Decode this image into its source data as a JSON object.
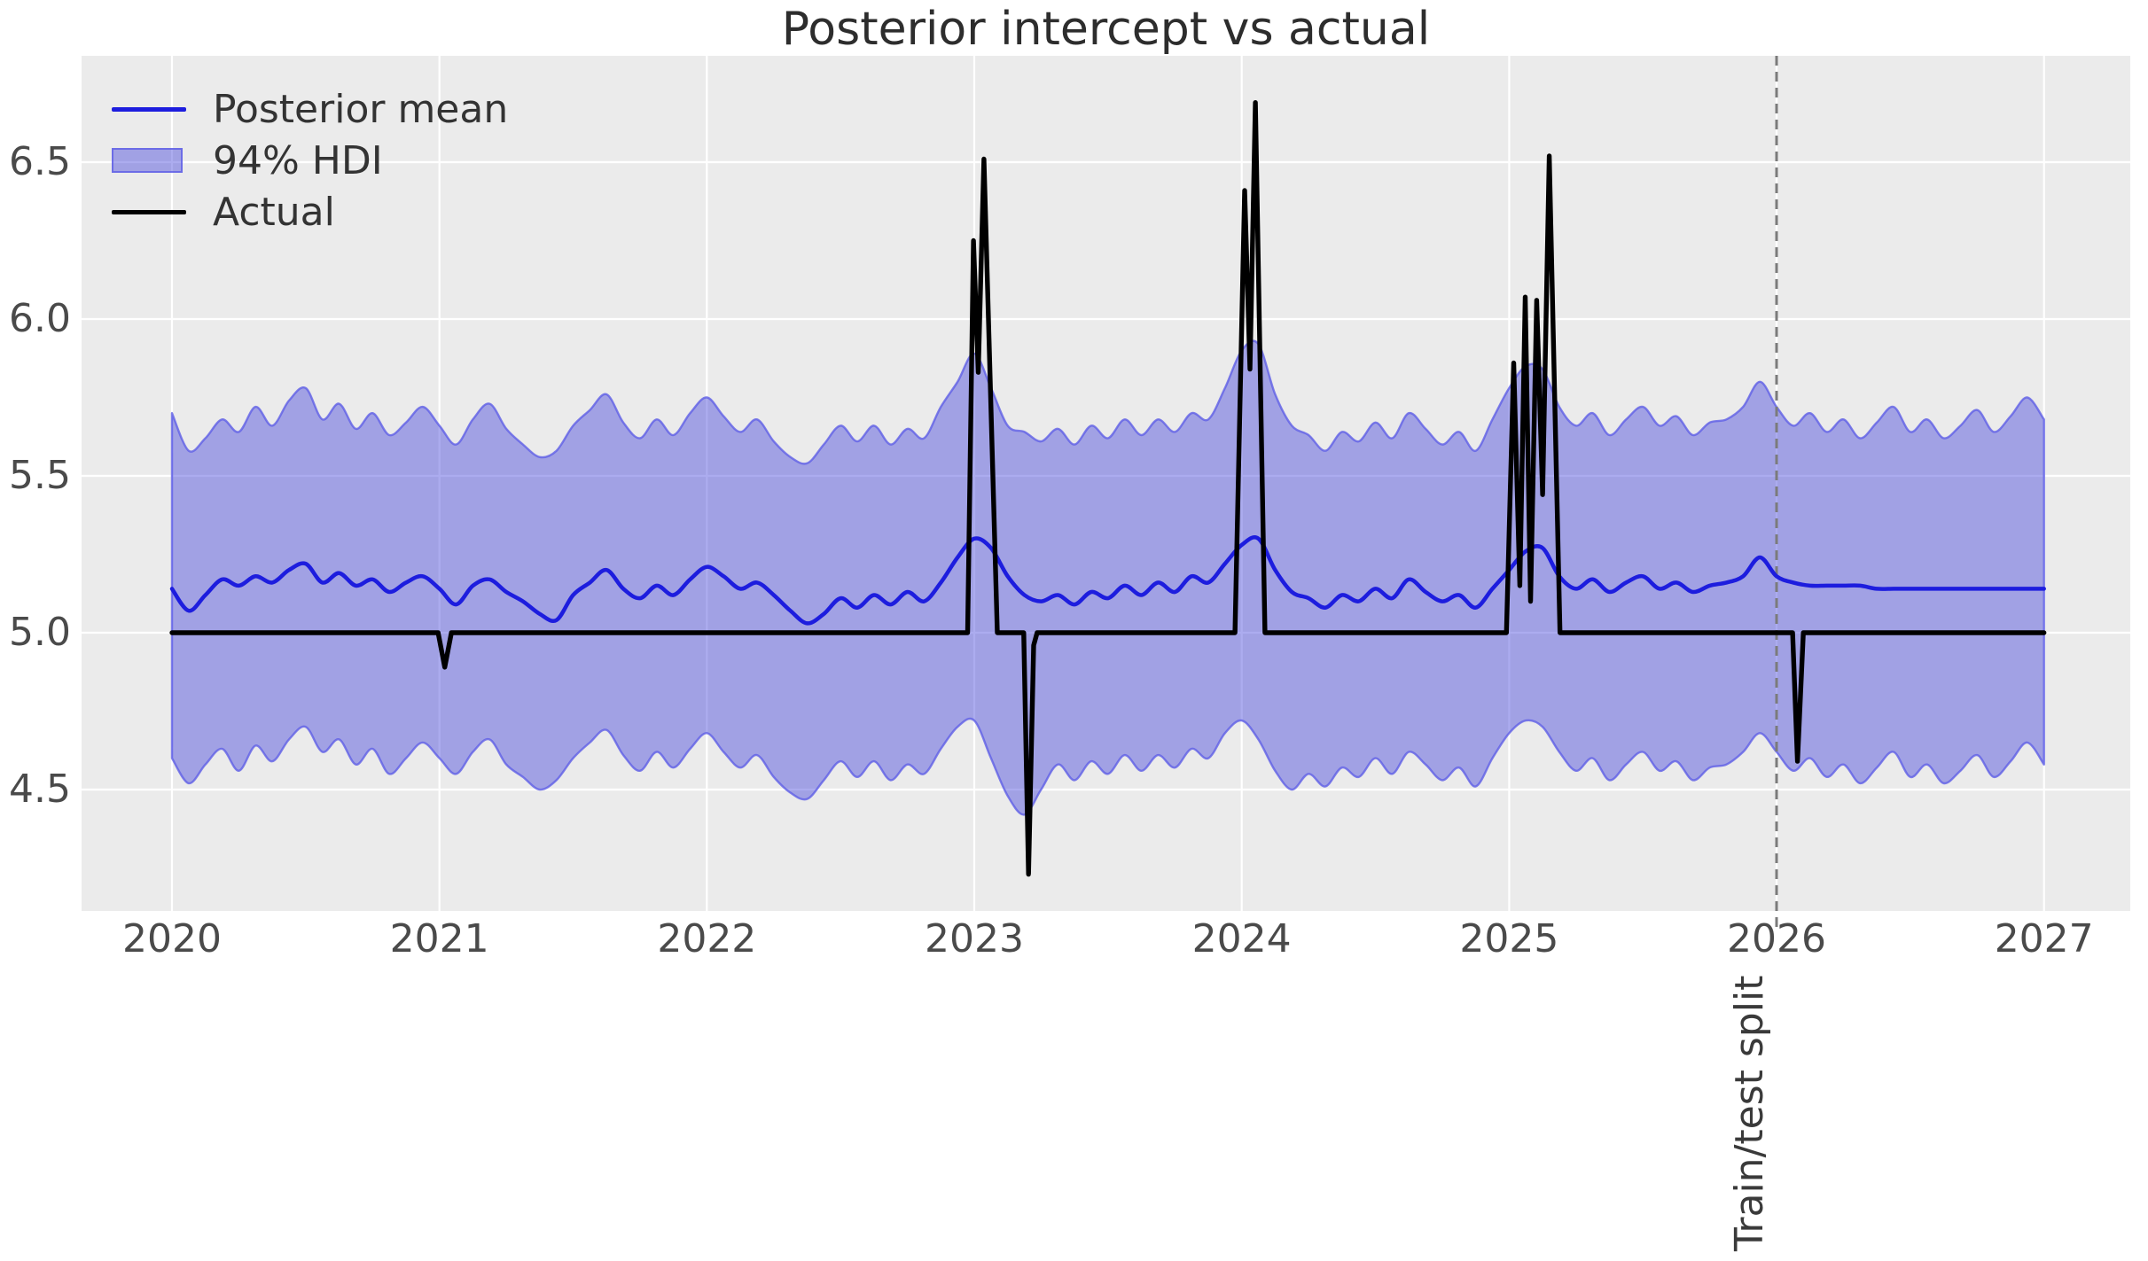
{
  "figure": {
    "title": "Posterior intercept vs actual"
  },
  "legend": {
    "position": "upper left",
    "items": [
      {
        "label": "Posterior mean",
        "type": "line"
      },
      {
        "label": "94% HDI",
        "type": "patch"
      },
      {
        "label": "Actual",
        "type": "line"
      }
    ]
  },
  "style": {
    "plot_bg": "#ebebeb",
    "grid_color": "#ffffff",
    "mean_color": "#1d1dde",
    "band_fill": "rgba(70,70,220,0.45)",
    "band_edge": "rgba(95,95,230,0.8)",
    "actual_color": "#000000",
    "split_color": "#7b7b7b",
    "tick_color": "#4a4a4a",
    "title_color": "#2d2d2d"
  },
  "chart_data": {
    "type": "line",
    "title": "Posterior intercept vs actual",
    "xlabel": "",
    "ylabel": "",
    "grid": true,
    "x_ticks": [
      2020,
      2021,
      2022,
      2023,
      2024,
      2025,
      2026,
      2027
    ],
    "y_ticks": [
      4.5,
      5.0,
      5.5,
      6.0,
      6.5
    ],
    "xlim": [
      2019.66,
      2027.32
    ],
    "ylim": [
      4.11,
      6.84
    ],
    "legend_position": "upper left",
    "split": {
      "x": 2026,
      "label": "Train/test split"
    },
    "series": [
      {
        "name": "94% HDI",
        "kind": "band",
        "x0": 2020,
        "dx": 0.0625,
        "upper": [
          5.7,
          5.58,
          5.62,
          5.68,
          5.64,
          5.72,
          5.66,
          5.74,
          5.78,
          5.68,
          5.73,
          5.65,
          5.7,
          5.63,
          5.67,
          5.72,
          5.66,
          5.6,
          5.68,
          5.73,
          5.65,
          5.6,
          5.56,
          5.58,
          5.66,
          5.71,
          5.76,
          5.67,
          5.62,
          5.68,
          5.63,
          5.7,
          5.75,
          5.69,
          5.64,
          5.68,
          5.61,
          5.56,
          5.54,
          5.6,
          5.66,
          5.61,
          5.66,
          5.6,
          5.65,
          5.62,
          5.72,
          5.8,
          5.89,
          5.78,
          5.66,
          5.64,
          5.61,
          5.65,
          5.6,
          5.66,
          5.62,
          5.68,
          5.63,
          5.68,
          5.64,
          5.7,
          5.68,
          5.78,
          5.9,
          5.92,
          5.76,
          5.66,
          5.63,
          5.58,
          5.64,
          5.61,
          5.67,
          5.62,
          5.7,
          5.65,
          5.6,
          5.64,
          5.58,
          5.68,
          5.78,
          5.85,
          5.84,
          5.72,
          5.66,
          5.7,
          5.63,
          5.68,
          5.72,
          5.66,
          5.69,
          5.63,
          5.67,
          5.68,
          5.72,
          5.8,
          5.72,
          5.66,
          5.7,
          5.64,
          5.68,
          5.62,
          5.67,
          5.72,
          5.64,
          5.68,
          5.62,
          5.66,
          5.71,
          5.64,
          5.69,
          5.75,
          5.68
        ],
        "lower": [
          4.6,
          4.52,
          4.58,
          4.63,
          4.56,
          4.64,
          4.59,
          4.66,
          4.7,
          4.62,
          4.66,
          4.58,
          4.63,
          4.55,
          4.6,
          4.65,
          4.6,
          4.55,
          4.62,
          4.66,
          4.58,
          4.54,
          4.5,
          4.53,
          4.6,
          4.65,
          4.69,
          4.61,
          4.56,
          4.62,
          4.57,
          4.63,
          4.68,
          4.62,
          4.57,
          4.61,
          4.54,
          4.49,
          4.47,
          4.53,
          4.59,
          4.54,
          4.59,
          4.53,
          4.58,
          4.55,
          4.63,
          4.7,
          4.72,
          4.6,
          4.48,
          4.42,
          4.5,
          4.58,
          4.53,
          4.59,
          4.55,
          4.61,
          4.56,
          4.61,
          4.57,
          4.63,
          4.6,
          4.68,
          4.72,
          4.66,
          4.56,
          4.5,
          4.55,
          4.51,
          4.57,
          4.54,
          4.6,
          4.55,
          4.62,
          4.58,
          4.53,
          4.57,
          4.51,
          4.6,
          4.68,
          4.72,
          4.7,
          4.62,
          4.56,
          4.6,
          4.53,
          4.58,
          4.62,
          4.56,
          4.59,
          4.53,
          4.57,
          4.58,
          4.62,
          4.68,
          4.62,
          4.56,
          4.6,
          4.54,
          4.58,
          4.52,
          4.57,
          4.62,
          4.54,
          4.58,
          4.52,
          4.56,
          4.61,
          4.54,
          4.59,
          4.65,
          4.58
        ]
      },
      {
        "name": "Posterior mean",
        "kind": "line",
        "x0": 2020,
        "dx": 0.0625,
        "values": [
          5.14,
          5.07,
          5.12,
          5.17,
          5.15,
          5.18,
          5.16,
          5.2,
          5.22,
          5.16,
          5.19,
          5.15,
          5.17,
          5.13,
          5.16,
          5.18,
          5.14,
          5.09,
          5.15,
          5.17,
          5.13,
          5.1,
          5.06,
          5.04,
          5.12,
          5.16,
          5.2,
          5.14,
          5.11,
          5.15,
          5.12,
          5.17,
          5.21,
          5.18,
          5.14,
          5.16,
          5.12,
          5.07,
          5.03,
          5.06,
          5.11,
          5.08,
          5.12,
          5.09,
          5.13,
          5.1,
          5.16,
          5.24,
          5.3,
          5.27,
          5.18,
          5.12,
          5.1,
          5.12,
          5.09,
          5.13,
          5.11,
          5.15,
          5.12,
          5.16,
          5.13,
          5.18,
          5.16,
          5.22,
          5.28,
          5.3,
          5.2,
          5.13,
          5.11,
          5.08,
          5.12,
          5.1,
          5.14,
          5.11,
          5.17,
          5.13,
          5.1,
          5.12,
          5.08,
          5.14,
          5.2,
          5.26,
          5.27,
          5.18,
          5.14,
          5.17,
          5.13,
          5.16,
          5.18,
          5.14,
          5.16,
          5.13,
          5.15,
          5.16,
          5.18,
          5.24,
          5.18,
          5.16,
          5.15,
          5.15,
          5.15,
          5.15,
          5.14,
          5.14,
          5.14,
          5.14,
          5.14,
          5.14,
          5.14,
          5.14,
          5.14,
          5.14,
          5.14
        ]
      },
      {
        "name": "Actual",
        "kind": "line",
        "points": [
          [
            2020.0,
            5.0
          ],
          [
            2020.995,
            5.0
          ],
          [
            2021.02,
            4.89
          ],
          [
            2021.045,
            5.0
          ],
          [
            2022.975,
            5.0
          ],
          [
            2022.997,
            6.25
          ],
          [
            2023.015,
            5.83
          ],
          [
            2023.036,
            6.51
          ],
          [
            2023.086,
            5.0
          ],
          [
            2023.185,
            5.0
          ],
          [
            2023.203,
            4.23
          ],
          [
            2023.222,
            4.96
          ],
          [
            2023.235,
            5.0
          ],
          [
            2023.975,
            5.0
          ],
          [
            2024.011,
            6.41
          ],
          [
            2024.031,
            5.84
          ],
          [
            2024.051,
            6.69
          ],
          [
            2024.087,
            5.0
          ],
          [
            2024.99,
            5.0
          ],
          [
            2025.017,
            5.86
          ],
          [
            2025.04,
            5.15
          ],
          [
            2025.06,
            6.07
          ],
          [
            2025.08,
            5.1
          ],
          [
            2025.103,
            6.06
          ],
          [
            2025.125,
            5.44
          ],
          [
            2025.15,
            6.52
          ],
          [
            2025.19,
            5.0
          ],
          [
            2026.06,
            5.0
          ],
          [
            2026.078,
            4.59
          ],
          [
            2026.1,
            5.0
          ],
          [
            2027.0,
            5.0
          ]
        ]
      }
    ]
  }
}
